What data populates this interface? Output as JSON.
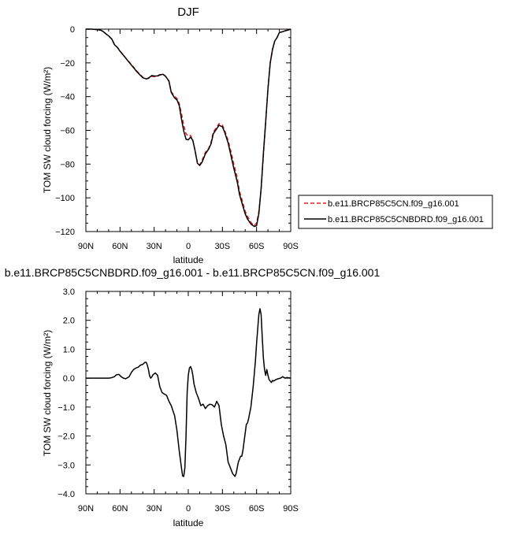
{
  "chart_data": [
    {
      "type": "line",
      "title": "DJF",
      "xlabel": "latitude",
      "ylabel": "TOM SW cloud forcing (W/m²)",
      "xlim": [
        90,
        -90
      ],
      "ylim": [
        -120,
        0
      ],
      "x_ticks": [
        90,
        60,
        30,
        0,
        -30,
        -60,
        -90
      ],
      "x_tick_labels": [
        "90N",
        "60N",
        "30N",
        "0",
        "30S",
        "60S",
        "90S"
      ],
      "y_ticks": [
        0,
        -20,
        -40,
        -60,
        -80,
        -100,
        -120
      ],
      "y_tick_labels": [
        "0",
        "−20",
        "−40",
        "−60",
        "−80",
        "−100",
        "−120"
      ],
      "legend_position": "right",
      "series": [
        {
          "name": "b.e11.BRCP85C5CN.f09_g16.001",
          "color": "#e0201f",
          "style": "dashed",
          "x": [
            90,
            85,
            80,
            77,
            75,
            72,
            70,
            67,
            65,
            62,
            60,
            58,
            55,
            50,
            45,
            40,
            37,
            35,
            32,
            30,
            27,
            25,
            22,
            20,
            17,
            15,
            12,
            10,
            8,
            6,
            4,
            2,
            0,
            -2,
            -4,
            -6,
            -8,
            -10,
            -12,
            -15,
            -18,
            -20,
            -22,
            -25,
            -27,
            -30,
            -32,
            -35,
            -38,
            -40,
            -43,
            -45,
            -48,
            -50,
            -52,
            -55,
            -57,
            -58,
            -60,
            -62,
            -64,
            -66,
            -68,
            -70,
            -72,
            -74,
            -76,
            -78,
            -80,
            -83,
            -85,
            -88,
            -90
          ],
          "y": [
            0,
            0,
            -0.3,
            -0.6,
            -1.3,
            -3,
            -4,
            -6,
            -9,
            -11,
            -13,
            -14.5,
            -17,
            -21,
            -25,
            -28.5,
            -29.5,
            -29.2,
            -28,
            -28.2,
            -28,
            -27.2,
            -27,
            -28,
            -31,
            -37,
            -40,
            -41,
            -44,
            -50,
            -57,
            -62,
            -63.5,
            -63,
            -66,
            -72,
            -79,
            -80.5,
            -78,
            -73,
            -70.5,
            -67,
            -61,
            -58,
            -56,
            -57,
            -60,
            -66,
            -74,
            -80,
            -88,
            -96,
            -103,
            -108,
            -111,
            -114.5,
            -116,
            -116.5,
            -115,
            -108,
            -95,
            -75,
            -55,
            -35,
            -20,
            -12,
            -7,
            -5,
            -2,
            -1.5,
            -1,
            -0.5,
            0
          ]
        },
        {
          "name": "b.e11.BRCP85C5CNBDRD.f09_g16.001",
          "color": "#000000",
          "style": "solid",
          "x": [
            90,
            85,
            80,
            77,
            75,
            72,
            70,
            67,
            65,
            62,
            60,
            58,
            55,
            50,
            45,
            40,
            37,
            35,
            32,
            30,
            27,
            25,
            22,
            20,
            17,
            15,
            12,
            10,
            8,
            6,
            4,
            2,
            0,
            -2,
            -4,
            -6,
            -8,
            -10,
            -12,
            -15,
            -18,
            -20,
            -22,
            -25,
            -27,
            -30,
            -32,
            -35,
            -38,
            -40,
            -43,
            -45,
            -48,
            -50,
            -52,
            -55,
            -57,
            -58,
            -60,
            -62,
            -64,
            -66,
            -68,
            -70,
            -72,
            -74,
            -76,
            -78,
            -80,
            -83,
            -85,
            -88,
            -90
          ],
          "y": [
            0,
            0,
            -0.3,
            -0.6,
            -1.3,
            -3,
            -4,
            -6.1,
            -9.1,
            -11.1,
            -13.1,
            -14.7,
            -17.2,
            -21.3,
            -25.4,
            -28.8,
            -29.5,
            -29,
            -27.5,
            -27.8,
            -27.7,
            -27,
            -26.8,
            -27.9,
            -30.8,
            -37.5,
            -40.8,
            -41.9,
            -45.2,
            -53.3,
            -60.4,
            -65.3,
            -65.6,
            -64,
            -66,
            -72.3,
            -79.5,
            -80.8,
            -79,
            -74,
            -71,
            -68,
            -62,
            -59,
            -57,
            -57.9,
            -61.2,
            -67.5,
            -76.5,
            -82.5,
            -90.5,
            -98,
            -105,
            -109.5,
            -112.5,
            -115.5,
            -116.5,
            -117,
            -116.5,
            -109.5,
            -94.5,
            -73.5,
            -55,
            -35.5,
            -20,
            -12,
            -7,
            -5,
            -2,
            -1.5,
            -1,
            -0.5,
            0
          ]
        }
      ]
    },
    {
      "type": "line",
      "title": "b.e11.BRCP85C5CNBDRD.f09_g16.001 - b.e11.BRCP85C5CN.f09_g16.001",
      "xlabel": "latitude",
      "ylabel": "TOM SW cloud forcing (W/m²)",
      "xlim": [
        90,
        -90
      ],
      "ylim": [
        -4.0,
        3.0
      ],
      "x_ticks": [
        90,
        60,
        30,
        0,
        -30,
        -60,
        -90
      ],
      "x_tick_labels": [
        "90N",
        "60N",
        "30N",
        "0",
        "30S",
        "60S",
        "90S"
      ],
      "y_ticks": [
        3.0,
        2.0,
        1.0,
        0.0,
        -1.0,
        -2.0,
        -3.0,
        -4.0
      ],
      "y_tick_labels": [
        "3.0",
        "2.0",
        "1.0",
        "0.0",
        "−1.0",
        "−2.0",
        "−3.0",
        "−4.0"
      ],
      "series": [
        {
          "color": "#000000",
          "style": "solid",
          "x": [
            90,
            85,
            80,
            75,
            70,
            68,
            65,
            63,
            61,
            59,
            57,
            55,
            52,
            50,
            48,
            46,
            44,
            42,
            40,
            38,
            37,
            36,
            35,
            34,
            33,
            32,
            31,
            29,
            27,
            25,
            23,
            21,
            19,
            17,
            15,
            12,
            10,
            8,
            6,
            5,
            4,
            3,
            2,
            1,
            0,
            -1,
            -2,
            -3,
            -4,
            -5,
            -7,
            -9,
            -11,
            -13,
            -15,
            -17,
            -19,
            -21,
            -23,
            -25,
            -27,
            -29,
            -31,
            -33,
            -35,
            -37,
            -39,
            -41,
            -42,
            -43,
            -44,
            -45,
            -46,
            -47,
            -48,
            -49,
            -50,
            -51,
            -52,
            -53,
            -55,
            -57,
            -59,
            -60,
            -61,
            -62,
            -63,
            -64,
            -65,
            -66,
            -67,
            -68,
            -69,
            -70,
            -71,
            -72,
            -73,
            -74,
            -75,
            -77,
            -79,
            -81,
            -83,
            -85,
            -87,
            -90
          ],
          "y": [
            0,
            0,
            0,
            0,
            0,
            0.01,
            0.05,
            0.12,
            0.13,
            0.05,
            0,
            -0.02,
            0.05,
            0.2,
            0.3,
            0.35,
            0.38,
            0.45,
            0.48,
            0.55,
            0.55,
            0.45,
            0.3,
            0.08,
            0,
            0.05,
            0.12,
            0.18,
            0.1,
            -0.3,
            -0.5,
            -0.55,
            -0.6,
            -0.8,
            -0.95,
            -1.3,
            -1.8,
            -2.5,
            -3.1,
            -3.38,
            -3.4,
            -3.1,
            -2.0,
            -0.5,
            0.1,
            0.35,
            0.4,
            0.3,
            0.1,
            -0.2,
            -0.5,
            -0.7,
            -0.95,
            -0.9,
            -1.05,
            -0.95,
            -0.9,
            -0.92,
            -1.0,
            -0.8,
            -0.95,
            -1.6,
            -2.0,
            -2.3,
            -2.9,
            -3.1,
            -3.3,
            -3.4,
            -3.3,
            -3.1,
            -2.9,
            -2.8,
            -2.7,
            -2.7,
            -2.5,
            -2.2,
            -1.9,
            -1.6,
            -1.55,
            -1.4,
            -1.0,
            -0.3,
            0.6,
            1.2,
            1.7,
            2.2,
            2.4,
            2.2,
            1.4,
            0.7,
            0.3,
            0.1,
            0.3,
            0.1,
            -0.05,
            -0.1,
            -0.15,
            -0.08,
            -0.1,
            -0.05,
            -0.02,
            0.0,
            0.05,
            0.0,
            0.02,
            0.0
          ]
        }
      ]
    }
  ]
}
